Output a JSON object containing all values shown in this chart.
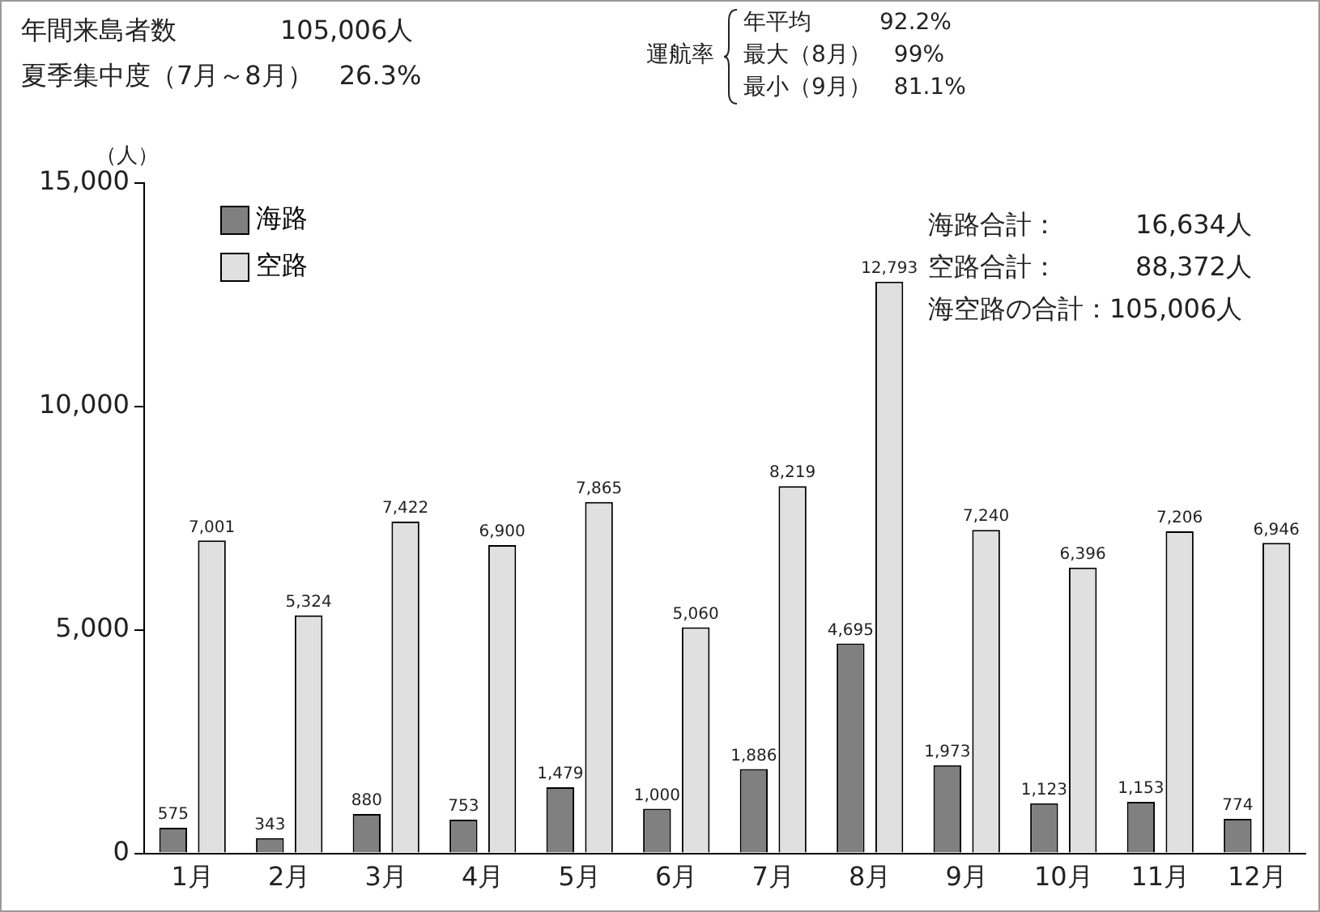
{
  "chart_data": {
    "type": "bar",
    "ylabel": "（人）",
    "categories": [
      "1月",
      "2月",
      "3月",
      "4月",
      "5月",
      "6月",
      "7月",
      "8月",
      "9月",
      "10月",
      "11月",
      "12月"
    ],
    "series": [
      {
        "name": "海路",
        "color": "#808080",
        "values": [
          575,
          343,
          880,
          753,
          1479,
          1000,
          1886,
          4695,
          1973,
          1123,
          1153,
          774
        ],
        "value_labels": [
          "575",
          "343",
          "880",
          "753",
          "1,479",
          "1,000",
          "1,886",
          "4,695",
          "1,973",
          "1,123",
          "1,153",
          "774"
        ]
      },
      {
        "name": "空路",
        "color": "#e0e0e0",
        "values": [
          7001,
          5324,
          7422,
          6900,
          7865,
          5060,
          8219,
          12793,
          7240,
          6396,
          7206,
          6946
        ],
        "value_labels": [
          "7,001",
          "5,324",
          "7,422",
          "6,900",
          "7,865",
          "5,060",
          "8,219",
          "12,793",
          "7,240",
          "6,396",
          "7,206",
          "6,946"
        ]
      }
    ],
    "ylim": [
      0,
      15000
    ],
    "yticks": [
      0,
      {
        "value": 5000,
        "label": "5,000"
      },
      {
        "value": 10000,
        "label": "10,000"
      },
      {
        "value": 15000,
        "label": "15,000"
      }
    ],
    "grid": false,
    "legend": "top left",
    "annotations": [
      "年間来島者数　　　　105,006人",
      "夏季集中度（7月～8月）　26.3%",
      "運航率",
      "年平均　　　92.2%",
      "最大（8月）　99%",
      "最小（9月）　81.1%",
      "海路合計：　　　16,634人",
      "空路合計：　　　88,372人",
      "海空路の合計：105,006人"
    ]
  }
}
